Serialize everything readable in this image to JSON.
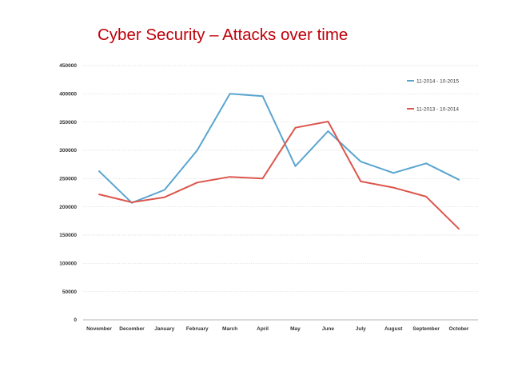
{
  "slide": {
    "title": "Cyber Security – Attacks over time"
  },
  "chart_data": {
    "type": "line",
    "categories": [
      "November",
      "December",
      "January",
      "February",
      "March",
      "April",
      "May",
      "June",
      "July",
      "August",
      "September",
      "October"
    ],
    "ylim": [
      0,
      450000
    ],
    "yticks": [
      0,
      50000,
      100000,
      150000,
      200000,
      250000,
      300000,
      350000,
      400000,
      450000
    ],
    "grid": "horizontal dotted",
    "legend": "top-right",
    "series": [
      {
        "name": "11-2014 - 10-2015",
        "color": "#5aa5cf",
        "values": [
          263000,
          207000,
          230000,
          300000,
          400000,
          396000,
          272000,
          334000,
          280000,
          260000,
          277000,
          248000
        ]
      },
      {
        "name": "11-2013 - 10-2014",
        "color": "#dc574d",
        "values": [
          222000,
          208000,
          217000,
          243000,
          253000,
          250000,
          340000,
          351000,
          245000,
          234000,
          218000,
          161000
        ]
      }
    ]
  }
}
